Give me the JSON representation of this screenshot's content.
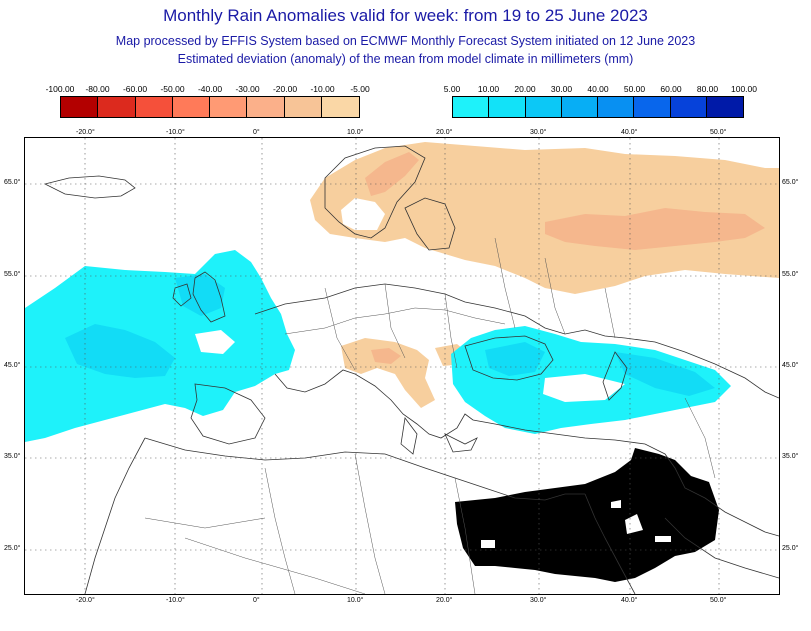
{
  "title": "Monthly Rain Anomalies valid for week: from 19 to 25 June 2023",
  "subtitle1": "Map processed by EFFIS System based on ECMWF Monthly Forecast System initiated on 12 June 2023",
  "subtitle2": "Estimated deviation (anomaly) of the mean from model climate in millimeters (mm)",
  "legend_negative": {
    "labels": [
      "-100.00",
      "-80.00",
      "-60.00",
      "-50.00",
      "-40.00",
      "-30.00",
      "-20.00",
      "-10.00",
      "-5.00"
    ],
    "colors": [
      "#b30000",
      "#dc2a1e",
      "#f5503a",
      "#ff7a59",
      "#ff9a74",
      "#fbb08a",
      "#f7c497",
      "#fad7a6"
    ]
  },
  "legend_positive": {
    "labels": [
      "5.00",
      "10.00",
      "20.00",
      "30.00",
      "40.00",
      "50.00",
      "60.00",
      "80.00",
      "100.00"
    ],
    "colors": [
      "#1ef2fa",
      "#12e2f8",
      "#0cc8f6",
      "#07aef5",
      "#0890f2",
      "#0866ec",
      "#0642da",
      "#001aa8"
    ]
  },
  "axes": {
    "lon_ticks": [
      "-20.0°",
      "-10.0°",
      "0°",
      "10.0°",
      "20.0°",
      "30.0°",
      "40.0°",
      "50.0°"
    ],
    "lat_ticks": [
      "65.0°",
      "55.0°",
      "45.0°",
      "35.0°",
      "25.0°"
    ]
  },
  "colors": {
    "dry": "#f7cf9e",
    "dry_strong": "#f5b78d",
    "wet": "#1ef2fa",
    "wet_strong": "#12dcf6",
    "no_data": "#000000",
    "coast": "#333333",
    "grid": "#555555"
  }
}
